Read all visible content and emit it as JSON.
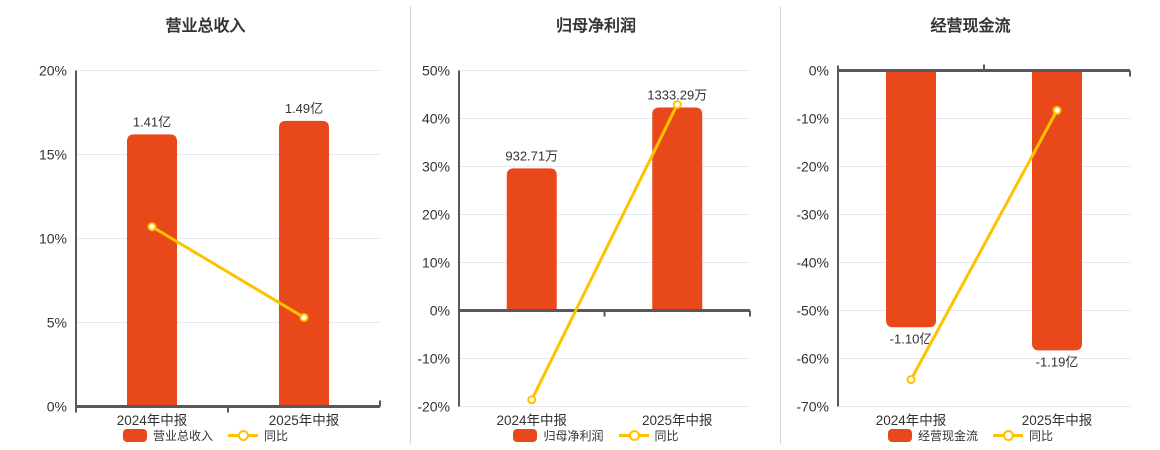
{
  "page": {
    "background": "#ffffff"
  },
  "colors": {
    "bar": "#e8481a",
    "line": "#fdc301",
    "grid": "#e3eaf4",
    "axis": "#55585e",
    "text": "#333333",
    "divider": "#d6d6d6"
  },
  "chart_data": [
    {
      "type": "bar",
      "title": "营业总收入",
      "categories": [
        "2024年中报",
        "2025年中报"
      ],
      "ylim": [
        0,
        20
      ],
      "yticks": [
        0,
        5,
        10,
        15,
        20
      ],
      "ytick_suffix": "%",
      "grid": "on",
      "legend_position": "bottom",
      "bar_series": {
        "name": "营业总收入",
        "values_pct": [
          16.2,
          17.0
        ],
        "value_labels": [
          "1.41亿",
          "1.49亿"
        ],
        "label_position": "above"
      },
      "line_series": {
        "name": "同比",
        "values_pct": [
          10.7,
          5.3
        ]
      }
    },
    {
      "type": "bar",
      "title": "归母净利润",
      "categories": [
        "2024年中报",
        "2025年中报"
      ],
      "ylim": [
        -20,
        50
      ],
      "yticks": [
        -20,
        -10,
        0,
        10,
        20,
        30,
        40,
        50
      ],
      "ytick_suffix": "%",
      "grid": "on",
      "legend_position": "bottom",
      "bar_series": {
        "name": "归母净利润",
        "values_pct": [
          29.6,
          42.3
        ],
        "value_labels": [
          "932.71万",
          "1333.29万"
        ],
        "label_position": "above"
      },
      "line_series": {
        "name": "同比",
        "values_pct": [
          -18.6,
          42.9
        ]
      }
    },
    {
      "type": "bar",
      "title": "经营现金流",
      "categories": [
        "2024年中报",
        "2025年中报"
      ],
      "ylim": [
        -70,
        0
      ],
      "yticks": [
        -70,
        -60,
        -50,
        -40,
        -30,
        -20,
        -10,
        0
      ],
      "ytick_suffix": "%",
      "grid": "on",
      "legend_position": "bottom",
      "bar_series": {
        "name": "经营现金流",
        "values_pct": [
          -53.5,
          -58.3
        ],
        "value_labels": [
          "-1.10亿",
          "-1.19亿"
        ],
        "label_position": "below"
      },
      "line_series": {
        "name": "同比",
        "values_pct": [
          -64.4,
          -8.3
        ]
      }
    }
  ]
}
